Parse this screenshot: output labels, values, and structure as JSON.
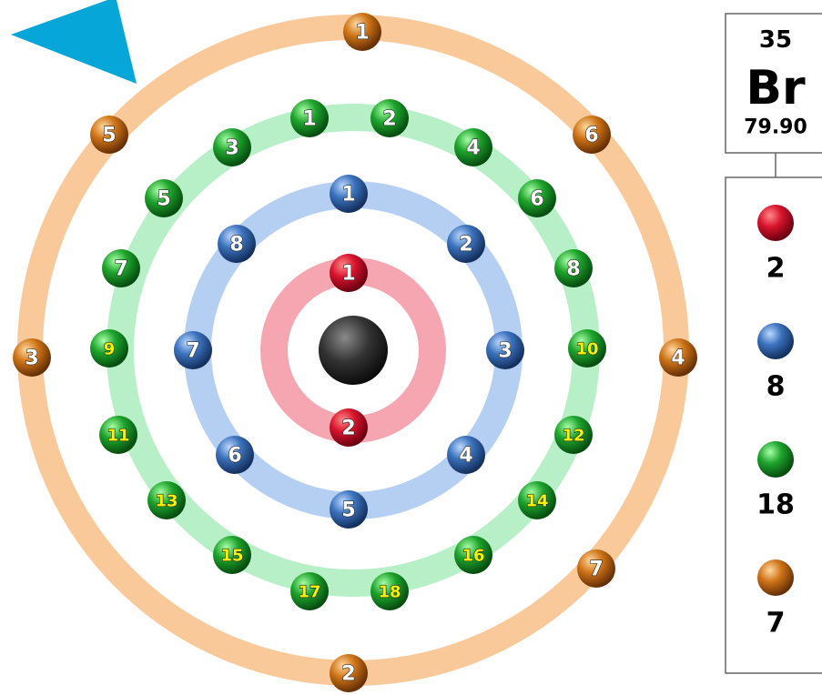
{
  "element": {
    "number": "35",
    "symbol": "Br",
    "mass": "79.90"
  },
  "shells": [
    {
      "count": "2",
      "electrons": [
        "1",
        "2"
      ]
    },
    {
      "count": "8",
      "electrons": [
        "1",
        "2",
        "3",
        "4",
        "5",
        "6",
        "7",
        "8"
      ]
    },
    {
      "count": "18",
      "electrons": [
        "1",
        "2",
        "3",
        "4",
        "5",
        "6",
        "7",
        "8",
        "9",
        "10",
        "11",
        "12",
        "13",
        "14",
        "15",
        "16",
        "17",
        "18"
      ]
    },
    {
      "count": "7",
      "electrons": [
        "1",
        "2",
        "3",
        "4",
        "5",
        "6",
        "7"
      ]
    }
  ]
}
